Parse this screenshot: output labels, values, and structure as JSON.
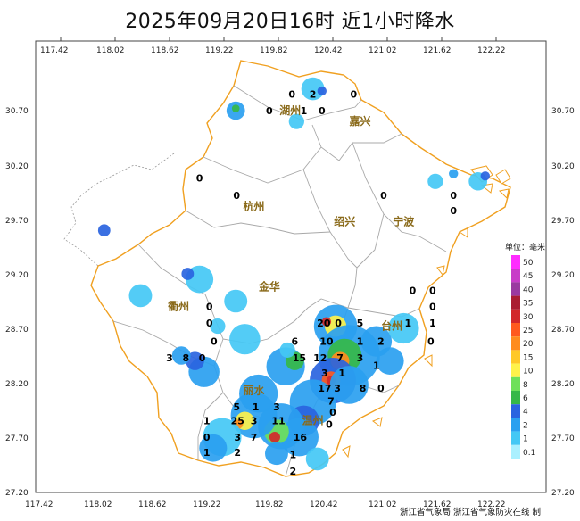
{
  "title": "2025年09月20日16时  近1小时降水",
  "axes": {
    "lon_ticks": [
      "117.42",
      "118.02",
      "118.62",
      "119.22",
      "119.82",
      "120.42",
      "121.02",
      "121.62",
      "122.22"
    ],
    "lat_ticks": [
      "30.70",
      "30.20",
      "29.70",
      "29.20",
      "28.70",
      "28.20",
      "27.70",
      "27.20"
    ]
  },
  "cities": [
    {
      "name": "湖州",
      "lon": 119.95,
      "lat": 30.7
    },
    {
      "name": "嘉兴",
      "lon": 120.72,
      "lat": 30.6
    },
    {
      "name": "杭州",
      "lon": 119.55,
      "lat": 29.82
    },
    {
      "name": "绍兴",
      "lon": 120.55,
      "lat": 29.68
    },
    {
      "name": "宁波",
      "lon": 121.2,
      "lat": 29.68
    },
    {
      "name": "金华",
      "lon": 119.72,
      "lat": 29.08
    },
    {
      "name": "衢州",
      "lon": 118.72,
      "lat": 28.9
    },
    {
      "name": "台州",
      "lon": 121.07,
      "lat": 28.72
    },
    {
      "name": "丽水",
      "lon": 119.55,
      "lat": 28.13
    },
    {
      "name": "温州",
      "lon": 120.2,
      "lat": 27.85
    }
  ],
  "stations": [
    {
      "v": "0",
      "lon": 119.97,
      "lat": 30.85
    },
    {
      "v": "2",
      "lon": 120.2,
      "lat": 30.85
    },
    {
      "v": "0",
      "lon": 120.65,
      "lat": 30.85
    },
    {
      "v": "0",
      "lon": 119.72,
      "lat": 30.7
    },
    {
      "v": "1",
      "lon": 120.1,
      "lat": 30.7
    },
    {
      "v": "0",
      "lon": 120.3,
      "lat": 30.7
    },
    {
      "v": "0",
      "lon": 118.95,
      "lat": 30.08
    },
    {
      "v": "0",
      "lon": 119.36,
      "lat": 29.92
    },
    {
      "v": "0",
      "lon": 120.98,
      "lat": 29.92
    },
    {
      "v": "0",
      "lon": 121.75,
      "lat": 29.92
    },
    {
      "v": "0",
      "lon": 121.75,
      "lat": 29.78
    },
    {
      "v": "0",
      "lon": 121.3,
      "lat": 29.05
    },
    {
      "v": "0",
      "lon": 121.52,
      "lat": 29.05
    },
    {
      "v": "0",
      "lon": 121.52,
      "lat": 28.9
    },
    {
      "v": "0",
      "lon": 119.06,
      "lat": 28.9
    },
    {
      "v": "0",
      "lon": 119.06,
      "lat": 28.75
    },
    {
      "v": "20",
      "lon": 120.32,
      "lat": 28.75
    },
    {
      "v": "0",
      "lon": 120.48,
      "lat": 28.75
    },
    {
      "v": "5",
      "lon": 120.72,
      "lat": 28.75
    },
    {
      "v": "1",
      "lon": 121.25,
      "lat": 28.75
    },
    {
      "v": "1",
      "lon": 121.52,
      "lat": 28.75
    },
    {
      "v": "0",
      "lon": 119.11,
      "lat": 28.58
    },
    {
      "v": "6",
      "lon": 120.0,
      "lat": 28.58
    },
    {
      "v": "10",
      "lon": 120.35,
      "lat": 28.58
    },
    {
      "v": "1",
      "lon": 120.72,
      "lat": 28.58
    },
    {
      "v": "2",
      "lon": 120.95,
      "lat": 28.58
    },
    {
      "v": "0",
      "lon": 121.5,
      "lat": 28.58
    },
    {
      "v": "3",
      "lon": 118.62,
      "lat": 28.43
    },
    {
      "v": "8",
      "lon": 118.8,
      "lat": 28.43
    },
    {
      "v": "0",
      "lon": 118.98,
      "lat": 28.43
    },
    {
      "v": "15",
      "lon": 120.05,
      "lat": 28.43
    },
    {
      "v": "12",
      "lon": 120.28,
      "lat": 28.43
    },
    {
      "v": "7",
      "lon": 120.5,
      "lat": 28.43
    },
    {
      "v": "3",
      "lon": 120.72,
      "lat": 28.43
    },
    {
      "v": "1",
      "lon": 120.9,
      "lat": 28.36
    },
    {
      "v": "3",
      "lon": 120.33,
      "lat": 28.29
    },
    {
      "v": "1",
      "lon": 120.52,
      "lat": 28.29
    },
    {
      "v": "17",
      "lon": 120.33,
      "lat": 28.15
    },
    {
      "v": "3",
      "lon": 120.47,
      "lat": 28.15
    },
    {
      "v": "8",
      "lon": 120.75,
      "lat": 28.15
    },
    {
      "v": "0",
      "lon": 120.95,
      "lat": 28.15
    },
    {
      "v": "7",
      "lon": 120.4,
      "lat": 28.03
    },
    {
      "v": "5",
      "lon": 119.36,
      "lat": 27.98
    },
    {
      "v": "1",
      "lon": 119.57,
      "lat": 27.98
    },
    {
      "v": "3",
      "lon": 119.8,
      "lat": 27.98
    },
    {
      "v": "0",
      "lon": 120.42,
      "lat": 27.93
    },
    {
      "v": "1",
      "lon": 119.03,
      "lat": 27.85
    },
    {
      "v": "25",
      "lon": 119.37,
      "lat": 27.85
    },
    {
      "v": "3",
      "lon": 119.55,
      "lat": 27.85
    },
    {
      "v": "11",
      "lon": 119.82,
      "lat": 27.85
    },
    {
      "v": "0",
      "lon": 120.38,
      "lat": 27.82
    },
    {
      "v": "0",
      "lon": 119.03,
      "lat": 27.7
    },
    {
      "v": "3",
      "lon": 119.37,
      "lat": 27.7
    },
    {
      "v": "7",
      "lon": 119.55,
      "lat": 27.7
    },
    {
      "v": "16",
      "lon": 120.06,
      "lat": 27.7
    },
    {
      "v": "1",
      "lon": 119.03,
      "lat": 27.56
    },
    {
      "v": "2",
      "lon": 119.37,
      "lat": 27.56
    },
    {
      "v": "1",
      "lon": 119.98,
      "lat": 27.54
    },
    {
      "v": "2",
      "lon": 119.98,
      "lat": 27.39
    }
  ],
  "rain_cells": [
    {
      "lon": 120.45,
      "lat": 28.72,
      "r": 0.28,
      "level": 2
    },
    {
      "lon": 120.45,
      "lat": 28.72,
      "r": 0.14,
      "level": 6
    },
    {
      "lon": 120.35,
      "lat": 28.76,
      "r": 0.06,
      "level": 10
    },
    {
      "lon": 120.6,
      "lat": 28.45,
      "r": 0.4,
      "level": 2
    },
    {
      "lon": 120.55,
      "lat": 28.45,
      "r": 0.22,
      "level": 4
    },
    {
      "lon": 120.5,
      "lat": 28.4,
      "r": 0.12,
      "level": 8
    },
    {
      "lon": 120.42,
      "lat": 28.22,
      "r": 0.3,
      "level": 3
    },
    {
      "lon": 120.4,
      "lat": 28.22,
      "r": 0.12,
      "level": 9
    },
    {
      "lon": 120.4,
      "lat": 28.22,
      "r": 0.06,
      "level": 10
    },
    {
      "lon": 120.6,
      "lat": 28.18,
      "r": 0.25,
      "level": 2
    },
    {
      "lon": 120.2,
      "lat": 28.02,
      "r": 0.3,
      "level": 2
    },
    {
      "lon": 120.1,
      "lat": 27.85,
      "r": 0.2,
      "level": 3
    },
    {
      "lon": 120.05,
      "lat": 27.7,
      "r": 0.25,
      "level": 2
    },
    {
      "lon": 119.85,
      "lat": 27.8,
      "r": 0.3,
      "level": 2
    },
    {
      "lon": 119.8,
      "lat": 27.75,
      "r": 0.16,
      "level": 5
    },
    {
      "lon": 119.78,
      "lat": 27.7,
      "r": 0.07,
      "level": 10
    },
    {
      "lon": 119.55,
      "lat": 27.9,
      "r": 0.3,
      "level": 2
    },
    {
      "lon": 119.45,
      "lat": 27.85,
      "r": 0.12,
      "level": 6
    },
    {
      "lon": 119.38,
      "lat": 27.82,
      "r": 0.06,
      "level": 8
    },
    {
      "lon": 119.6,
      "lat": 28.1,
      "r": 0.25,
      "level": 2
    },
    {
      "lon": 119.2,
      "lat": 27.7,
      "r": 0.25,
      "level": 1
    },
    {
      "lon": 119.1,
      "lat": 27.6,
      "r": 0.18,
      "level": 2
    },
    {
      "lon": 119.0,
      "lat": 28.3,
      "r": 0.2,
      "level": 2
    },
    {
      "lon": 118.9,
      "lat": 28.4,
      "r": 0.12,
      "level": 3
    },
    {
      "lon": 118.75,
      "lat": 28.45,
      "r": 0.12,
      "level": 2
    },
    {
      "lon": 119.9,
      "lat": 28.35,
      "r": 0.25,
      "level": 2
    },
    {
      "lon": 120.0,
      "lat": 28.4,
      "r": 0.12,
      "level": 4
    },
    {
      "lon": 121.05,
      "lat": 28.4,
      "r": 0.18,
      "level": 2
    },
    {
      "lon": 120.9,
      "lat": 28.58,
      "r": 0.2,
      "level": 2
    },
    {
      "lon": 121.2,
      "lat": 28.7,
      "r": 0.2,
      "level": 1
    },
    {
      "lon": 118.95,
      "lat": 29.15,
      "r": 0.18,
      "level": 1
    },
    {
      "lon": 118.82,
      "lat": 29.2,
      "r": 0.08,
      "level": 3
    },
    {
      "lon": 118.3,
      "lat": 29.0,
      "r": 0.15,
      "level": 1
    },
    {
      "lon": 117.9,
      "lat": 29.6,
      "r": 0.08,
      "level": 3
    },
    {
      "lon": 119.35,
      "lat": 28.95,
      "r": 0.15,
      "level": 1
    },
    {
      "lon": 119.45,
      "lat": 28.6,
      "r": 0.2,
      "level": 1
    },
    {
      "lon": 119.15,
      "lat": 28.72,
      "r": 0.1,
      "level": 1
    },
    {
      "lon": 119.92,
      "lat": 28.5,
      "r": 0.1,
      "level": 1
    },
    {
      "lon": 119.35,
      "lat": 30.7,
      "r": 0.12,
      "level": 2
    },
    {
      "lon": 119.35,
      "lat": 30.72,
      "r": 0.05,
      "level": 4
    },
    {
      "lon": 120.2,
      "lat": 30.9,
      "r": 0.15,
      "level": 1
    },
    {
      "lon": 120.3,
      "lat": 30.88,
      "r": 0.06,
      "level": 3
    },
    {
      "lon": 120.02,
      "lat": 30.6,
      "r": 0.1,
      "level": 1
    },
    {
      "lon": 121.55,
      "lat": 30.05,
      "r": 0.1,
      "level": 1
    },
    {
      "lon": 122.02,
      "lat": 30.05,
      "r": 0.12,
      "level": 1
    },
    {
      "lon": 122.1,
      "lat": 30.1,
      "r": 0.06,
      "level": 3
    },
    {
      "lon": 121.75,
      "lat": 30.12,
      "r": 0.06,
      "level": 2
    },
    {
      "lon": 119.8,
      "lat": 27.55,
      "r": 0.15,
      "level": 2
    },
    {
      "lon": 120.25,
      "lat": 27.5,
      "r": 0.15,
      "level": 1
    }
  ],
  "legend": {
    "title": "单位：毫米",
    "colors": [
      "#aaf0ff",
      "#44c8f5",
      "#2aa0f0",
      "#2a64e0",
      "#36b848",
      "#6ee05a",
      "#fff24a",
      "#ffc828",
      "#ff8c1e",
      "#ff5a1e",
      "#d2282a",
      "#aa1e32",
      "#9a3aa0",
      "#c83cc8",
      "#ff2cff"
    ],
    "labels": [
      "0.1",
      "1",
      "2",
      "4",
      "6",
      "8",
      "10",
      "15",
      "20",
      "25",
      "30",
      "35",
      "40",
      "45",
      "50"
    ]
  },
  "credit": "浙江省气象局 浙江省气象防灾在线 制"
}
